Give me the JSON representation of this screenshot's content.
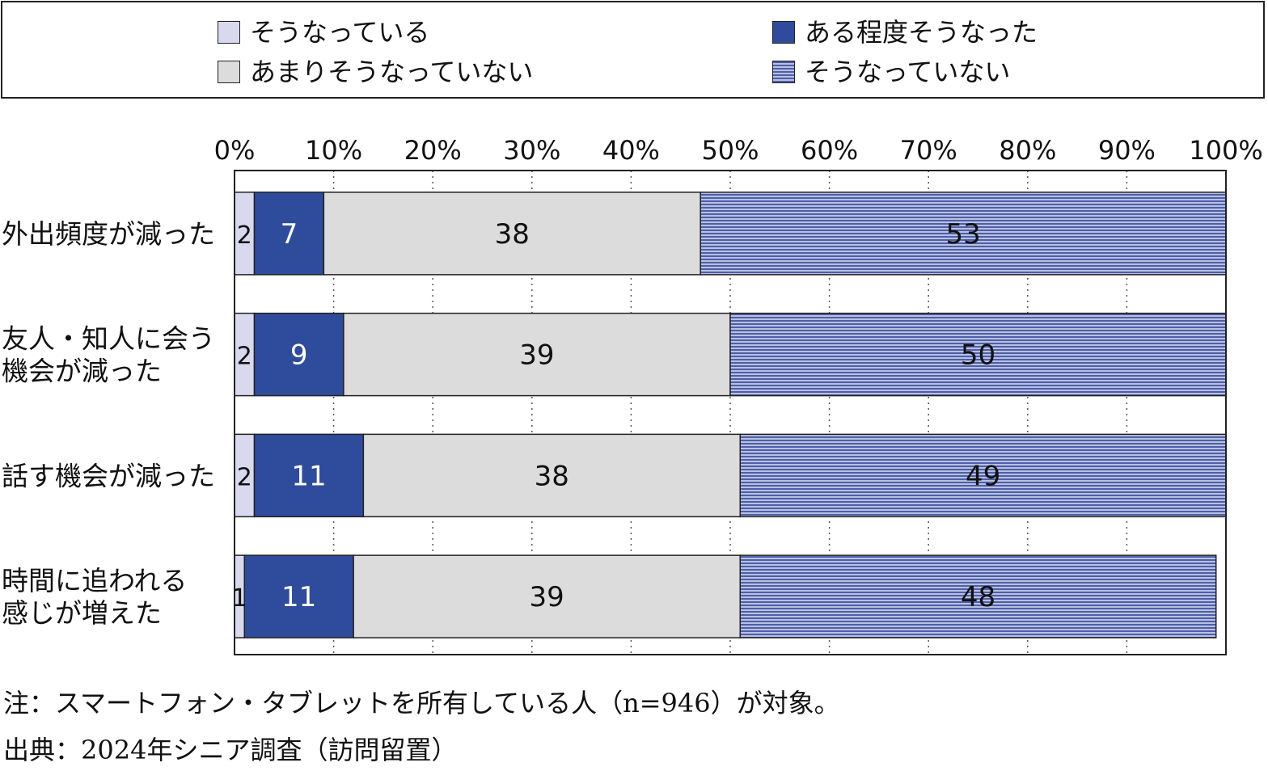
{
  "legend": [
    {
      "label": "そうなっている",
      "color": "#d8d8ee"
    },
    {
      "label": "ある程度そうなった",
      "color": "#2f4b9c"
    },
    {
      "label": "あまりそうなっていない",
      "color": "#dcdcdc"
    },
    {
      "label": "そうなっていない",
      "color": "#4e5fa6"
    }
  ],
  "chart_data": {
    "type": "bar",
    "orientation": "horizontal",
    "stacked": true,
    "categories": [
      [
        "外出頻度が減った"
      ],
      [
        "友人・知人に会う",
        "機会が減った"
      ],
      [
        "話す機会が減った"
      ],
      [
        "時間に追われる",
        "感じが増えた"
      ]
    ],
    "series": [
      {
        "name": "そうなっている",
        "values": [
          2,
          2,
          2,
          1
        ],
        "color": "#d8d8ee",
        "label_color": "#111111"
      },
      {
        "name": "ある程度そうなった",
        "values": [
          7,
          9,
          11,
          11
        ],
        "color": "#2f4b9c",
        "label_color": "#ffffff"
      },
      {
        "name": "あまりそうなっていない",
        "values": [
          38,
          39,
          38,
          39
        ],
        "color": "#dcdcdc",
        "label_color": "#111111"
      },
      {
        "name": "そうなっていない",
        "values": [
          53,
          50,
          49,
          48
        ],
        "color": "#4e5fa6",
        "label_color": "#111111"
      }
    ],
    "xlim": [
      0,
      100
    ],
    "x_ticks": [
      "0%",
      "10%",
      "20%",
      "30%",
      "40%",
      "50%",
      "60%",
      "70%",
      "80%",
      "90%",
      "100%"
    ],
    "grid": "vertical dotted",
    "legend_position": "top"
  },
  "notes": {
    "note": "注：スマートフォン・タブレットを所有している人（n=946）が対象。",
    "source": "出典：2024年シニア調査（訪問留置）"
  }
}
